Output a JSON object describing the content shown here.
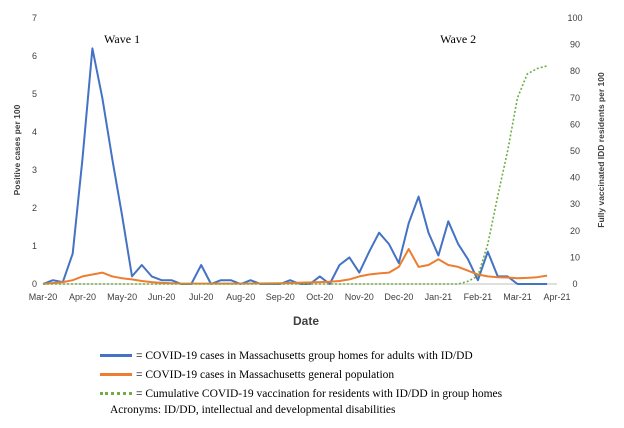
{
  "chart_data": {
    "type": "line",
    "xlabel": "Date",
    "ylabel_left": "Positive cases per 100",
    "ylabel_right": "Fully vaccinated IDD residents per 100",
    "ylim_left": [
      0,
      7
    ],
    "ylim_right": [
      0,
      100
    ],
    "xlim": [
      0,
      13
    ],
    "x_tick_labels": [
      "Mar-20",
      "Apr-20",
      "May-20",
      "Jun-20",
      "Jul-20",
      "Aug-20",
      "Sep-20",
      "Oct-20",
      "Nov-20",
      "Dec-20",
      "Jan-21",
      "Feb-21",
      "Mar-21",
      "Apr-21"
    ],
    "y_left_ticks": [
      0,
      1,
      2,
      3,
      4,
      5,
      6,
      7
    ],
    "y_right_ticks": [
      0,
      10,
      20,
      30,
      40,
      50,
      60,
      70,
      80,
      90,
      100
    ],
    "annotations": [
      {
        "text": "Wave 1",
        "x": 2.0,
        "y": 6.45
      },
      {
        "text": "Wave 2",
        "x": 10.5,
        "y": 6.45
      }
    ],
    "series": [
      {
        "name": "Group homes",
        "axis": "left",
        "color": "#4472c4",
        "style": "solid",
        "x": [
          0,
          0.25,
          0.5,
          0.75,
          1.0,
          1.25,
          1.5,
          1.75,
          2.0,
          2.25,
          2.5,
          2.75,
          3.0,
          3.25,
          3.5,
          3.75,
          4.0,
          4.25,
          4.5,
          4.75,
          5.0,
          5.25,
          5.5,
          5.75,
          6.0,
          6.25,
          6.5,
          6.75,
          7.0,
          7.25,
          7.5,
          7.75,
          8.0,
          8.25,
          8.5,
          8.75,
          9.0,
          9.25,
          9.5,
          9.75,
          10.0,
          10.25,
          10.5,
          10.75,
          11.0,
          11.25,
          11.5,
          11.75,
          12.0,
          12.25,
          12.5,
          12.75
        ],
        "values": [
          0,
          0.1,
          0.05,
          0.8,
          3.3,
          6.2,
          4.9,
          3.3,
          1.8,
          0.2,
          0.5,
          0.2,
          0.1,
          0.1,
          0,
          0,
          0.5,
          0,
          0.1,
          0.1,
          0,
          0.1,
          0,
          0,
          0,
          0.1,
          0,
          0,
          0.2,
          0,
          0.5,
          0.7,
          0.3,
          0.85,
          1.35,
          1.05,
          0.55,
          1.6,
          2.3,
          1.35,
          0.75,
          1.65,
          1.05,
          0.65,
          0.1,
          0.85,
          0.2,
          0.2,
          0,
          0,
          0,
          0
        ]
      },
      {
        "name": "General population",
        "axis": "left",
        "color": "#ed7d31",
        "style": "solid",
        "x": [
          0,
          0.5,
          0.75,
          1.0,
          1.25,
          1.5,
          1.75,
          2.0,
          2.25,
          2.5,
          2.75,
          3.0,
          3.25,
          3.5,
          4.0,
          5.0,
          6.0,
          7.0,
          7.25,
          7.5,
          7.75,
          8.0,
          8.25,
          8.5,
          8.75,
          9.0,
          9.25,
          9.5,
          9.75,
          10.0,
          10.25,
          10.5,
          10.75,
          11.0,
          11.25,
          11.5,
          11.75,
          12.0,
          12.25,
          12.5,
          12.75
        ],
        "values": [
          0,
          0.05,
          0.1,
          0.2,
          0.25,
          0.3,
          0.2,
          0.15,
          0.12,
          0.08,
          0.05,
          0.03,
          0.02,
          0.01,
          0.01,
          0.01,
          0.02,
          0.05,
          0.06,
          0.08,
          0.12,
          0.2,
          0.25,
          0.28,
          0.3,
          0.45,
          0.92,
          0.45,
          0.5,
          0.65,
          0.5,
          0.45,
          0.35,
          0.25,
          0.2,
          0.18,
          0.17,
          0.15,
          0.16,
          0.18,
          0.22
        ]
      },
      {
        "name": "Cumulative vaccination",
        "axis": "right",
        "color": "#70ad47",
        "style": "dotted",
        "x": [
          0,
          10.5,
          10.75,
          11.0,
          11.25,
          11.5,
          11.75,
          12.0,
          12.25,
          12.5,
          12.75
        ],
        "values": [
          0,
          0,
          1,
          3,
          15,
          33,
          50,
          70,
          79,
          81,
          82
        ]
      }
    ]
  },
  "legend": {
    "items": [
      "= COVID-19 cases in Massachusetts group homes for adults with ID/DD",
      "= COVID-19 cases in Massachusetts general population",
      "= Cumulative COVID-19 vaccination for residents with ID/DD in group homes"
    ],
    "acronyms": "Acronyms: ID/DD, intellectual and developmental disabilities"
  }
}
